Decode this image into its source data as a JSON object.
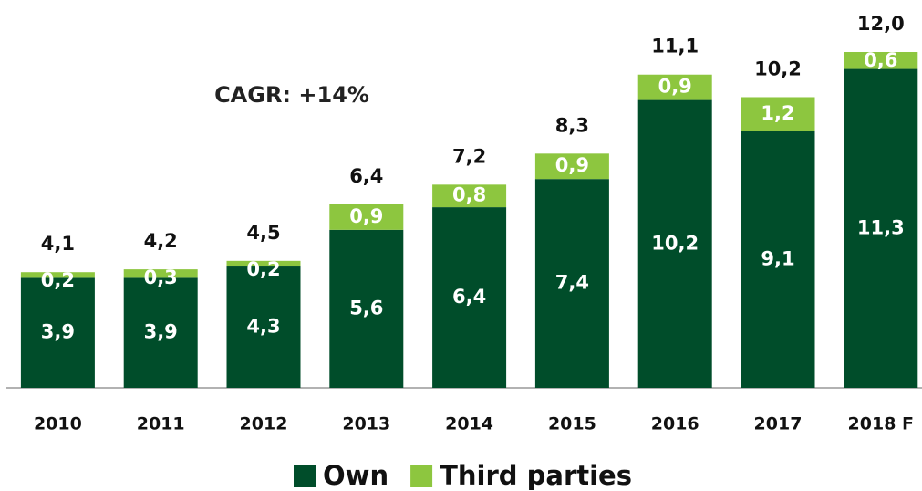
{
  "chart_data": {
    "type": "stacked_bar",
    "annotation": "CAGR: +14%",
    "categories": [
      "2010",
      "2011",
      "2012",
      "2013",
      "2014",
      "2015",
      "2016",
      "2017",
      "2018 F"
    ],
    "series": [
      {
        "name": "Own",
        "color": "#004d2a",
        "values": [
          3.9,
          3.9,
          4.3,
          5.6,
          6.4,
          7.4,
          10.2,
          9.1,
          11.3
        ],
        "value_labels": [
          "3,9",
          "3,9",
          "4,3",
          "5,6",
          "6,4",
          "7,4",
          "10,2",
          "9,1",
          "11,3"
        ]
      },
      {
        "name": "Third parties",
        "color": "#8dc63f",
        "values": [
          0.2,
          0.3,
          0.2,
          0.9,
          0.8,
          0.9,
          0.9,
          1.2,
          0.6
        ],
        "value_labels": [
          "0,2",
          "0,3",
          "0,2",
          "0,9",
          "0,8",
          "0,9",
          "0,9",
          "1,2",
          "0,6"
        ]
      }
    ],
    "totals": [
      4.1,
      4.2,
      4.5,
      6.4,
      7.2,
      8.3,
      11.1,
      10.2,
      12.0
    ],
    "total_labels": [
      "4,1",
      "4,2",
      "4,5",
      "6,4",
      "7,2",
      "8,3",
      "11,1",
      "10,2",
      "12,0"
    ]
  }
}
